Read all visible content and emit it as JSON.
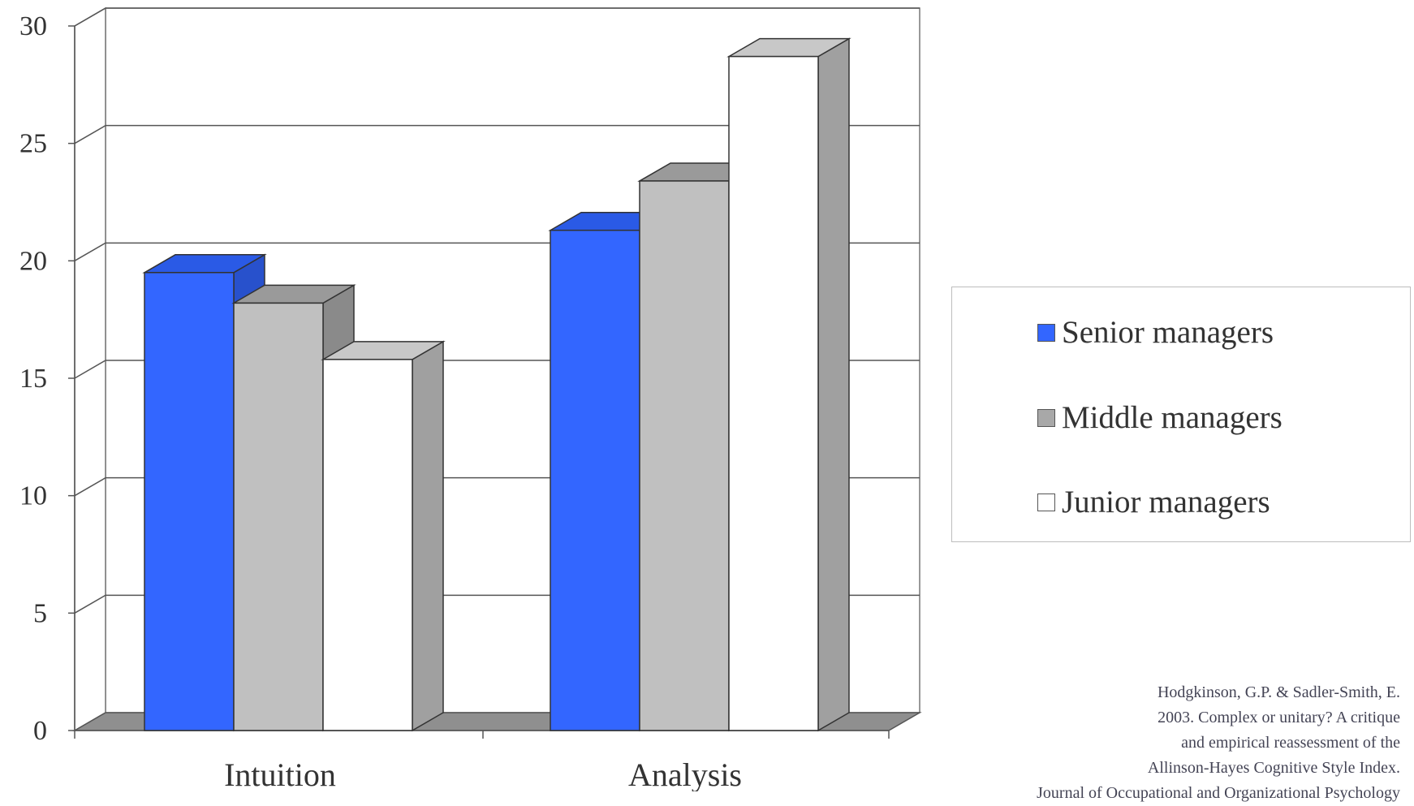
{
  "chart_data": {
    "type": "bar",
    "title": "",
    "xlabel": "",
    "ylabel": "",
    "categories": [
      "Intuition",
      "Analysis"
    ],
    "series": [
      {
        "name": "Senior managers",
        "values": [
          19.5,
          21.3
        ]
      },
      {
        "name": "Middle managers",
        "values": [
          18.2,
          23.4
        ]
      },
      {
        "name": "Junior managers",
        "values": [
          15.8,
          28.7
        ]
      }
    ],
    "ylim": [
      0,
      30
    ],
    "yticks": [
      0,
      5,
      10,
      15,
      20,
      25,
      30
    ],
    "grid": true,
    "style": "3d-clustered-column",
    "legend_position": "right"
  },
  "colors": {
    "senior": "#3366ff",
    "middle": "#c0c0c0",
    "junior": "#ffffff",
    "floor": "#888888"
  },
  "citation": [
    "Hodgkinson, G.P. & Sadler-Smith, E.",
    "2003. Complex or unitary? A critique",
    "and empirical reassessment of the",
    "Allinson-Hayes Cognitive Style Index.",
    "Journal of Occupational and Organizational Psychology"
  ]
}
